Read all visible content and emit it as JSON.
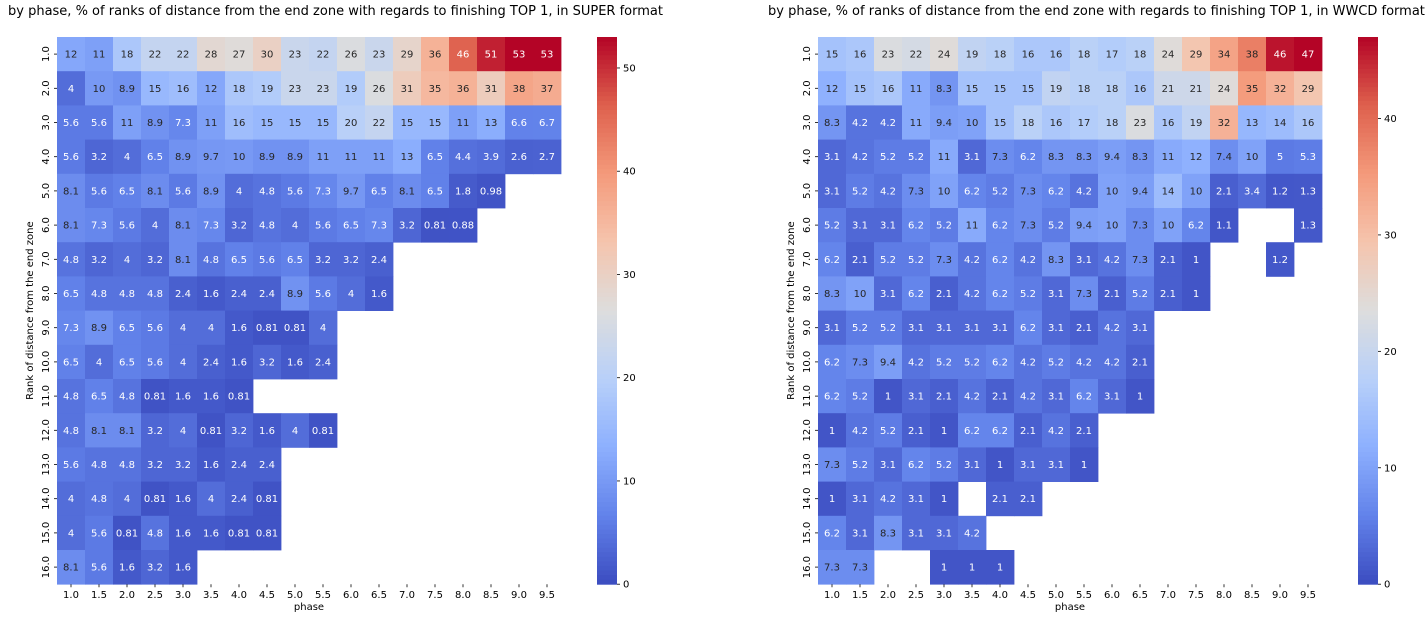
{
  "charts_meta": {
    "left_title": "by phase, % of ranks of distance from the end zone with regards to finishing TOP 1, in SUPER format",
    "right_title": "by phase, % of ranks of distance from the end zone with regards to finishing TOP 1, in WWCD format"
  },
  "chart_data": [
    {
      "type": "heatmap",
      "title": "by phase, % of ranks of distance from the end zone with regards to finishing TOP 1, in SUPER format",
      "xlabel": "phase",
      "ylabel": "Rank of distance from the end zone",
      "x_categories": [
        "1.0",
        "1.5",
        "2.0",
        "2.5",
        "3.0",
        "3.5",
        "4.0",
        "4.5",
        "5.0",
        "5.5",
        "6.0",
        "6.5",
        "7.0",
        "7.5",
        "8.0",
        "8.5",
        "9.0",
        "9.5"
      ],
      "y_categories": [
        "1.0",
        "2.0",
        "3.0",
        "4.0",
        "5.0",
        "6.0",
        "7.0",
        "8.0",
        "9.0",
        "10.0",
        "11.0",
        "12.0",
        "13.0",
        "14.0",
        "15.0",
        "16.0"
      ],
      "colormap": "coolwarm",
      "colorbar_range": [
        0,
        53
      ],
      "colorbar_ticks": [
        0,
        10,
        20,
        30,
        40,
        50
      ],
      "values": [
        [
          12,
          11,
          18,
          22,
          22,
          28,
          27,
          30,
          23,
          22,
          26,
          23,
          29,
          36,
          46,
          51,
          53,
          53
        ],
        [
          4,
          10,
          8.9,
          15,
          16,
          12,
          18,
          19,
          23,
          23,
          19,
          26,
          31,
          35,
          36,
          31,
          38,
          37
        ],
        [
          5.6,
          5.6,
          11,
          8.9,
          7.3,
          11,
          16,
          15,
          15,
          15,
          20,
          22,
          15,
          15,
          11,
          13,
          6.6,
          6.7
        ],
        [
          5.6,
          3.2,
          4,
          6.5,
          8.9,
          9.7,
          10,
          8.9,
          8.9,
          11,
          11,
          11,
          13,
          6.5,
          4.4,
          3.9,
          2.6,
          2.7
        ],
        [
          8.1,
          5.6,
          6.5,
          8.1,
          5.6,
          8.9,
          4,
          4.8,
          5.6,
          7.3,
          9.7,
          6.5,
          8.1,
          6.5,
          1.8,
          0.98,
          null,
          null
        ],
        [
          8.1,
          7.3,
          5.6,
          4,
          8.1,
          7.3,
          3.2,
          4.8,
          4,
          5.6,
          6.5,
          7.3,
          3.2,
          0.81,
          0.88,
          null,
          null,
          null
        ],
        [
          4.8,
          3.2,
          4,
          3.2,
          8.1,
          4.8,
          6.5,
          5.6,
          6.5,
          3.2,
          3.2,
          2.4,
          null,
          null,
          null,
          null,
          null,
          null
        ],
        [
          6.5,
          4.8,
          4.8,
          4.8,
          2.4,
          1.6,
          2.4,
          2.4,
          8.9,
          5.6,
          4,
          1.6,
          null,
          null,
          null,
          null,
          null,
          null
        ],
        [
          7.3,
          8.9,
          6.5,
          5.6,
          4,
          4,
          1.6,
          0.81,
          0.81,
          4,
          null,
          null,
          null,
          null,
          null,
          null,
          null,
          null
        ],
        [
          6.5,
          4,
          6.5,
          5.6,
          4,
          2.4,
          1.6,
          3.2,
          1.6,
          2.4,
          null,
          null,
          null,
          null,
          null,
          null,
          null,
          null
        ],
        [
          4.8,
          6.5,
          4.8,
          0.81,
          1.6,
          1.6,
          0.81,
          null,
          null,
          null,
          null,
          null,
          null,
          null,
          null,
          null,
          null,
          null
        ],
        [
          4.8,
          8.1,
          8.1,
          3.2,
          4,
          0.81,
          3.2,
          1.6,
          4,
          0.81,
          null,
          null,
          null,
          null,
          null,
          null,
          null,
          null
        ],
        [
          5.6,
          4.8,
          4.8,
          3.2,
          3.2,
          1.6,
          2.4,
          2.4,
          null,
          null,
          null,
          null,
          null,
          null,
          null,
          null,
          null,
          null
        ],
        [
          4,
          4.8,
          4,
          0.81,
          1.6,
          4,
          2.4,
          0.81,
          null,
          null,
          null,
          null,
          null,
          null,
          null,
          null,
          null,
          null
        ],
        [
          4,
          5.6,
          0.81,
          4.8,
          1.6,
          1.6,
          0.81,
          0.81,
          null,
          null,
          null,
          null,
          null,
          null,
          null,
          null,
          null,
          null
        ],
        [
          8.1,
          5.6,
          1.6,
          3.2,
          1.6,
          null,
          null,
          null,
          null,
          null,
          null,
          null,
          null,
          null,
          null,
          null,
          null,
          null
        ]
      ]
    },
    {
      "type": "heatmap",
      "title": "by phase, % of ranks of distance from the end zone with regards to finishing TOP 1, in WWCD format",
      "xlabel": "phase",
      "ylabel": "Rank of distance from the end zone",
      "x_categories": [
        "1.0",
        "1.5",
        "2.0",
        "2.5",
        "3.0",
        "3.5",
        "4.0",
        "4.5",
        "5.0",
        "5.5",
        "6.0",
        "6.5",
        "7.0",
        "7.5",
        "8.0",
        "8.5",
        "9.0",
        "9.5"
      ],
      "y_categories": [
        "1.0",
        "2.0",
        "3.0",
        "4.0",
        "5.0",
        "6.0",
        "7.0",
        "8.0",
        "9.0",
        "10.0",
        "11.0",
        "12.0",
        "13.0",
        "14.0",
        "15.0",
        "16.0"
      ],
      "colormap": "coolwarm",
      "colorbar_range": [
        0,
        47
      ],
      "colorbar_ticks": [
        0,
        10,
        20,
        30,
        40
      ],
      "values": [
        [
          15,
          16,
          23,
          22,
          24,
          19,
          18,
          16,
          16,
          18,
          17,
          18,
          24,
          29,
          34,
          38,
          46,
          47
        ],
        [
          12,
          15,
          16,
          11,
          8.3,
          15,
          15,
          15,
          19,
          18,
          18,
          16,
          21,
          21,
          24,
          35,
          32,
          29
        ],
        [
          8.3,
          4.2,
          4.2,
          11,
          9.4,
          10,
          15,
          18,
          16,
          17,
          18,
          23,
          16,
          19,
          32,
          13,
          14,
          16
        ],
        [
          3.1,
          4.2,
          5.2,
          5.2,
          11,
          3.1,
          7.3,
          6.2,
          8.3,
          8.3,
          9.4,
          8.3,
          11,
          12,
          7.4,
          10,
          5,
          5.3
        ],
        [
          3.1,
          5.2,
          4.2,
          7.3,
          10,
          6.2,
          5.2,
          7.3,
          6.2,
          4.2,
          10,
          9.4,
          14,
          10,
          2.1,
          3.4,
          1.2,
          1.3
        ],
        [
          5.2,
          3.1,
          3.1,
          6.2,
          5.2,
          11,
          6.2,
          7.3,
          5.2,
          9.4,
          10,
          7.3,
          10,
          6.2,
          1.1,
          null,
          null,
          1.3
        ],
        [
          6.2,
          2.1,
          5.2,
          5.2,
          7.3,
          4.2,
          6.2,
          4.2,
          8.3,
          3.1,
          4.2,
          7.3,
          2.1,
          1,
          null,
          null,
          1.2,
          null
        ],
        [
          8.3,
          10,
          3.1,
          6.2,
          2.1,
          4.2,
          6.2,
          5.2,
          3.1,
          7.3,
          2.1,
          5.2,
          2.1,
          1,
          null,
          null,
          null,
          null
        ],
        [
          3.1,
          5.2,
          5.2,
          3.1,
          3.1,
          3.1,
          3.1,
          6.2,
          3.1,
          2.1,
          4.2,
          3.1,
          null,
          null,
          null,
          null,
          null,
          null
        ],
        [
          6.2,
          7.3,
          9.4,
          4.2,
          5.2,
          5.2,
          6.2,
          4.2,
          5.2,
          4.2,
          4.2,
          2.1,
          null,
          null,
          null,
          null,
          null,
          null
        ],
        [
          6.2,
          5.2,
          1,
          3.1,
          2.1,
          4.2,
          2.1,
          4.2,
          3.1,
          6.2,
          3.1,
          1,
          null,
          null,
          null,
          null,
          null,
          null
        ],
        [
          1,
          4.2,
          5.2,
          2.1,
          1,
          6.2,
          6.2,
          2.1,
          4.2,
          2.1,
          null,
          null,
          null,
          null,
          null,
          null,
          null,
          null
        ],
        [
          7.3,
          5.2,
          3.1,
          6.2,
          5.2,
          3.1,
          1,
          3.1,
          3.1,
          1,
          null,
          null,
          null,
          null,
          null,
          null,
          null,
          null
        ],
        [
          1,
          3.1,
          4.2,
          3.1,
          1,
          null,
          2.1,
          2.1,
          null,
          null,
          null,
          null,
          null,
          null,
          null,
          null,
          null,
          null
        ],
        [
          6.2,
          3.1,
          8.3,
          3.1,
          3.1,
          4.2,
          null,
          null,
          null,
          null,
          null,
          null,
          null,
          null,
          null,
          null,
          null,
          null
        ],
        [
          7.3,
          7.3,
          null,
          null,
          1,
          1,
          1,
          null,
          null,
          null,
          null,
          null,
          null,
          null,
          null,
          null,
          null,
          null
        ]
      ]
    }
  ]
}
